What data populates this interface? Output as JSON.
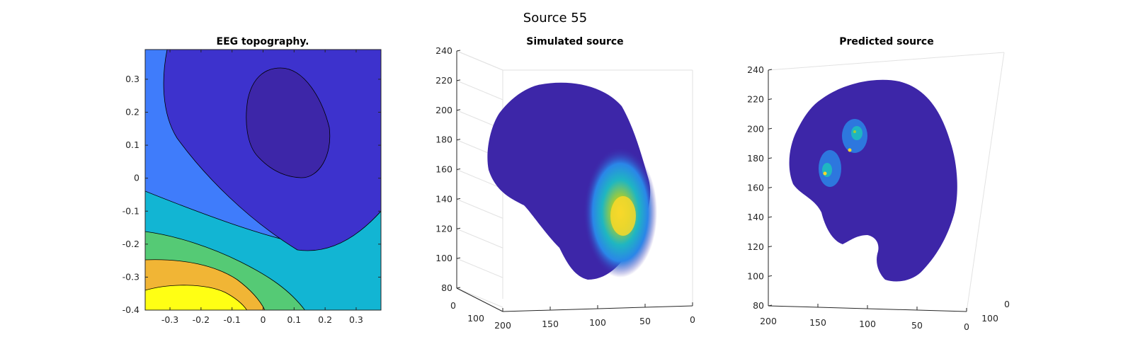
{
  "figure": {
    "title": "Source 55"
  },
  "chart_data": [
    {
      "type": "heatmap",
      "subtype": "filled-contour",
      "title": "EEG topography.",
      "xlim": [
        -0.38,
        0.38
      ],
      "ylim": [
        -0.4,
        0.39
      ],
      "xticks": [
        -0.3,
        -0.2,
        -0.1,
        0,
        0.1,
        0.2,
        0.3
      ],
      "yticks": [
        -0.4,
        -0.3,
        -0.2,
        -0.1,
        0,
        0.1,
        0.2,
        0.3
      ],
      "xtick_labels": [
        "-0.3",
        "-0.2",
        "-0.1",
        "0",
        "0.1",
        "0.2",
        "0.3"
      ],
      "ytick_labels": [
        "-0.4",
        "-0.3",
        "-0.2",
        "-0.1",
        "0",
        "0.1",
        "0.2",
        "0.3"
      ],
      "levels_colors": [
        "#ffff14",
        "#f1b535",
        "#55ca75",
        "#12b5d3",
        "#3f7cfb",
        "#3d32cd",
        "#3d26a8"
      ],
      "grid": false
    },
    {
      "type": "scatter",
      "subtype": "3d-source",
      "title": "Simulated source",
      "zlim": [
        80,
        240
      ],
      "zticks": [
        80,
        100,
        120,
        140,
        160,
        180,
        200,
        220,
        240
      ],
      "xticks": [
        200,
        150,
        100,
        50,
        0
      ],
      "yticks": [
        0,
        100
      ],
      "hotspot": "lower-right, y≈130, x≈75",
      "colormap": "parula",
      "grid": true
    },
    {
      "type": "scatter",
      "subtype": "3d-source",
      "title": "Predicted source",
      "zlim": [
        80,
        240
      ],
      "zticks": [
        80,
        100,
        120,
        140,
        160,
        180,
        200,
        220,
        240
      ],
      "xticks": [
        200,
        150,
        100,
        50,
        0
      ],
      "yticks": [
        0,
        100
      ],
      "hotspot": "upper-left, z≈170-200, x≈120-145",
      "colormap": "parula",
      "grid": true
    }
  ]
}
